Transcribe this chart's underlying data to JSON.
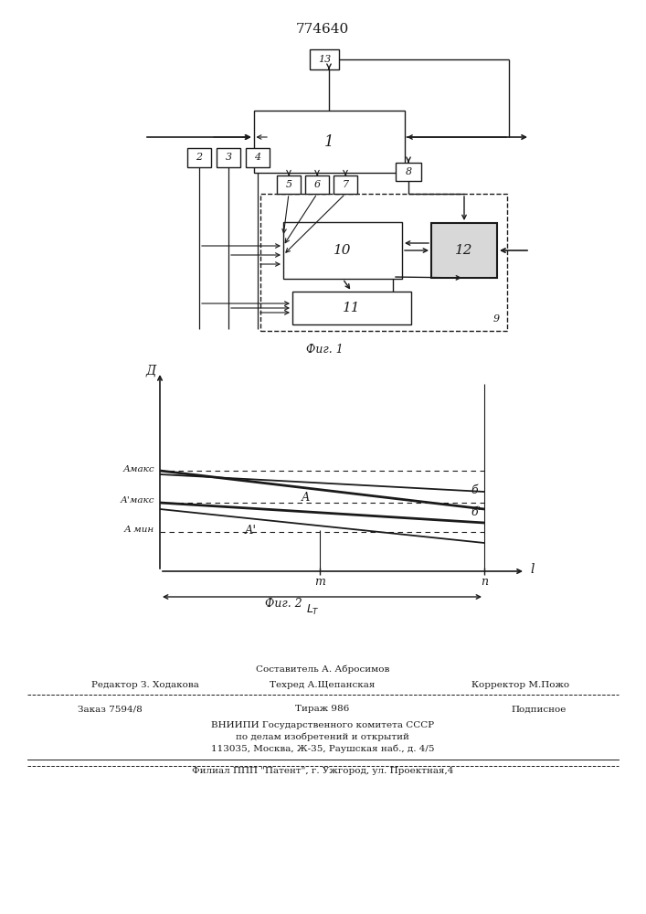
{
  "title": "774640",
  "fig1_caption": "Фиг. 1",
  "fig2_caption": "Фиг. 2",
  "bg_color": "#ffffff",
  "line_color": "#1a1a1a"
}
